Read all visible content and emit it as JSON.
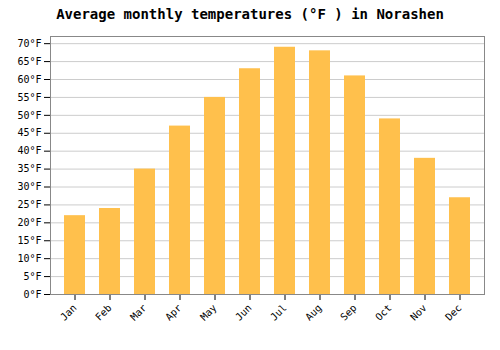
{
  "chart_data": {
    "type": "bar",
    "title": "Average monthly temperatures (°F ) in Norashen",
    "categories": [
      "Jan",
      "Feb",
      "Mar",
      "Apr",
      "May",
      "Jun",
      "Jul",
      "Aug",
      "Sep",
      "Oct",
      "Nov",
      "Dec"
    ],
    "values": [
      22,
      24,
      35,
      47,
      55,
      63,
      69,
      68,
      61,
      49,
      38,
      27
    ],
    "color": "#FFC04C",
    "ylim": [
      0,
      72
    ],
    "yticks": [
      {
        "value": 0,
        "label": "0°F"
      },
      {
        "value": 5,
        "label": "5°F"
      },
      {
        "value": 10,
        "label": "10°F"
      },
      {
        "value": 15,
        "label": "15°F"
      },
      {
        "value": 20,
        "label": "20°F"
      },
      {
        "value": 25,
        "label": "25°F"
      },
      {
        "value": 30,
        "label": "30°F"
      },
      {
        "value": 35,
        "label": "35°F"
      },
      {
        "value": 40,
        "label": "40°F"
      },
      {
        "value": 45,
        "label": "45°F"
      },
      {
        "value": 50,
        "label": "50°F"
      },
      {
        "value": 55,
        "label": "55°F"
      },
      {
        "value": 60,
        "label": "60°F"
      },
      {
        "value": 65,
        "label": "65°F"
      },
      {
        "value": 70,
        "label": "70°F"
      }
    ],
    "grid": true
  }
}
